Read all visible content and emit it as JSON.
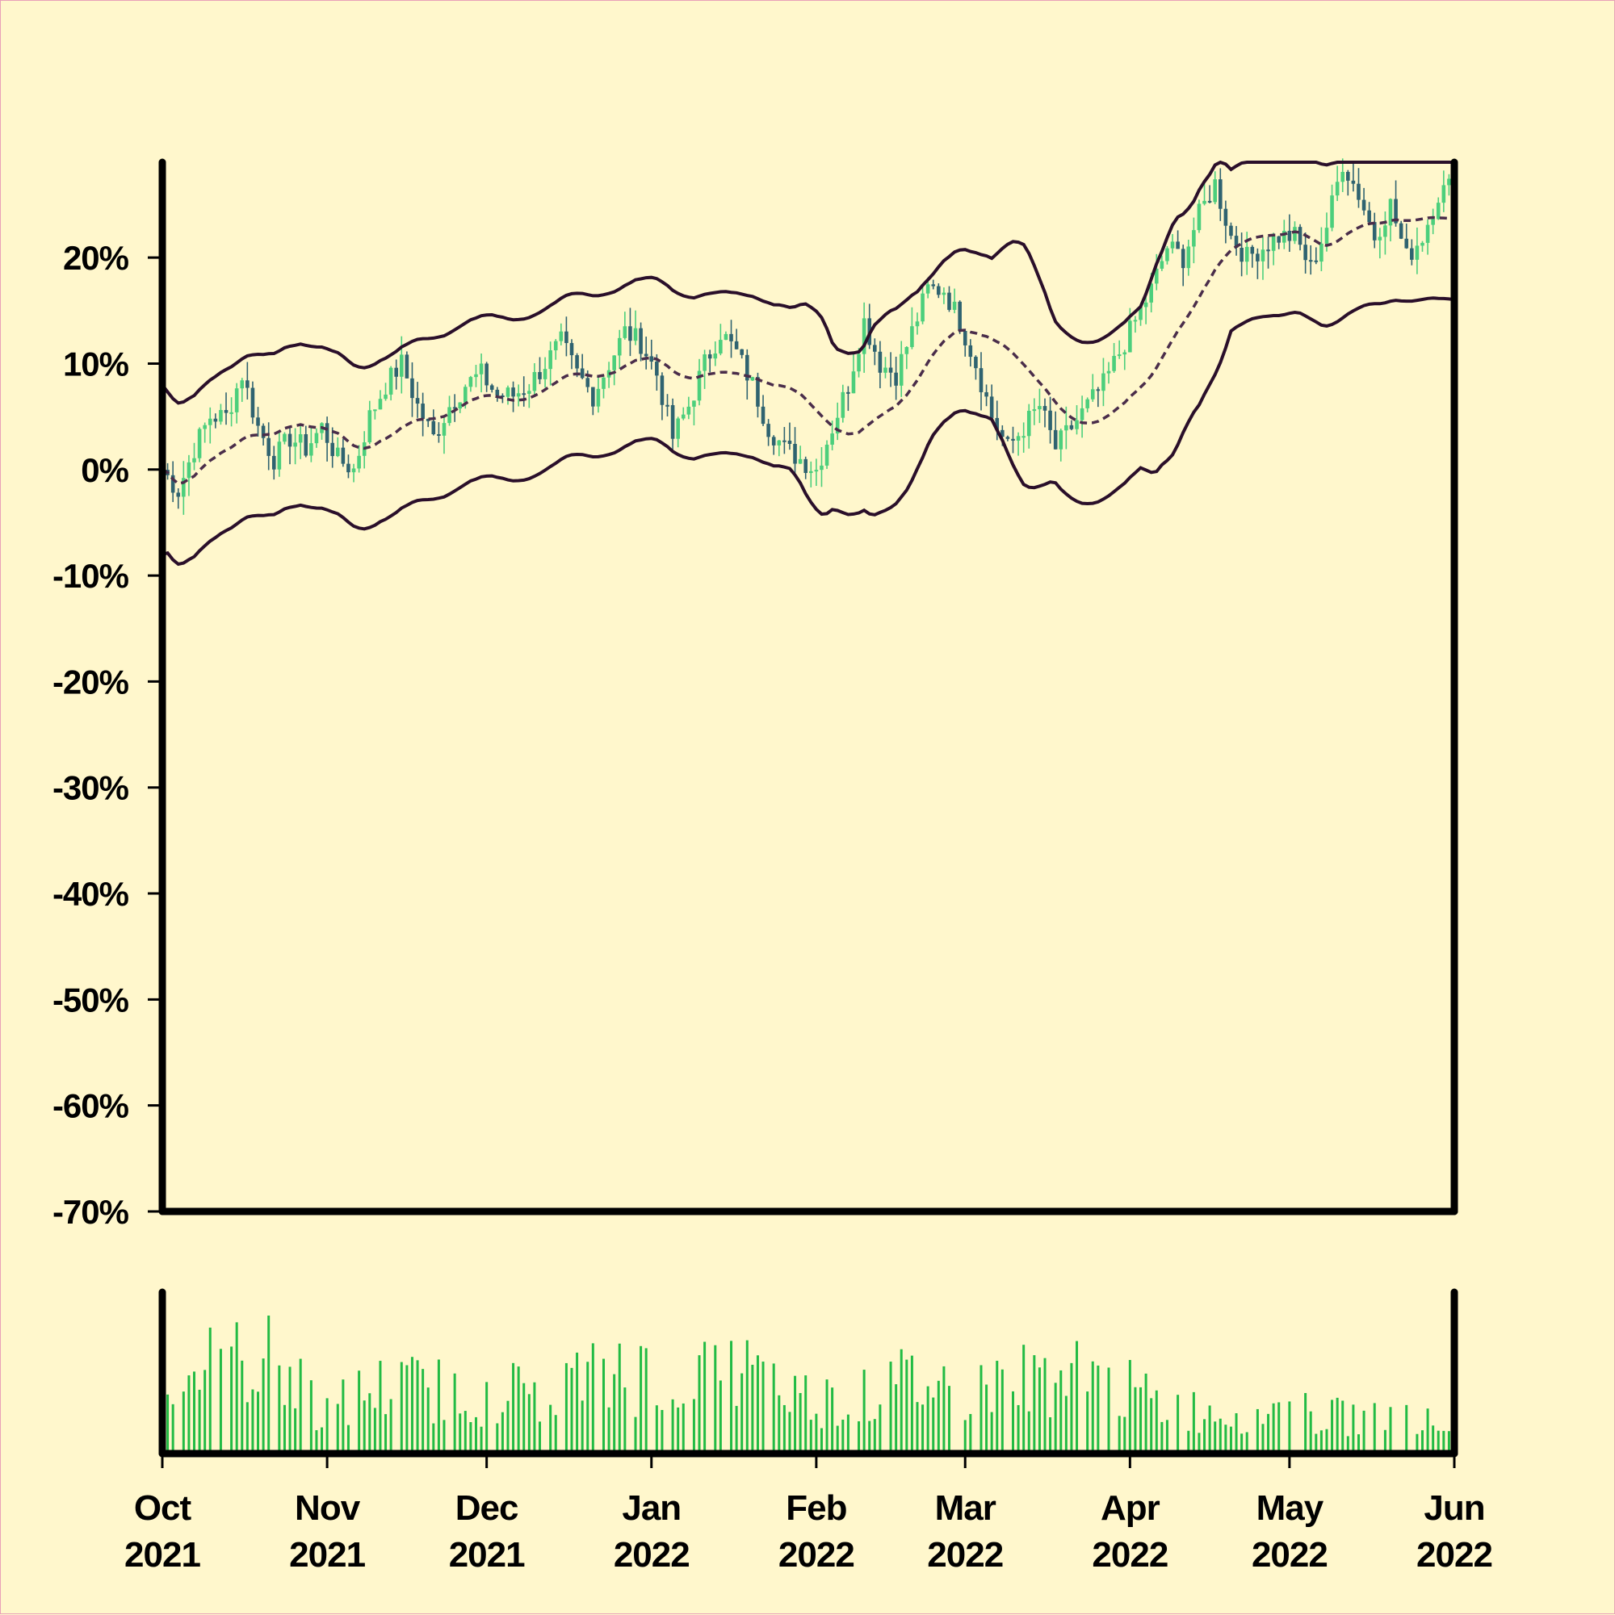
{
  "chart_data": {
    "type": "candlestick",
    "title": "",
    "xlabel": "",
    "ylabel": "",
    "x_range": [
      "2021-10-01",
      "2022-06-01"
    ],
    "ylim": [
      -70,
      29
    ],
    "y_ticks": [
      20,
      10,
      0,
      -10,
      -20,
      -30,
      -40,
      -50,
      -60,
      -70
    ],
    "y_tick_labels": [
      "20%",
      "10%",
      "0%",
      "-10%",
      "-20%",
      "-30%",
      "-40%",
      "-50%",
      "-60%",
      "-70%"
    ],
    "x_ticks": [
      "2021-10-01",
      "2021-11-01",
      "2021-12-01",
      "2022-01-01",
      "2022-02-01",
      "2022-03-01",
      "2022-04-01",
      "2022-05-01",
      "2022-06-01"
    ],
    "x_tick_labels": [
      {
        "month": "Oct",
        "year": "2021"
      },
      {
        "month": "Nov",
        "year": "2021"
      },
      {
        "month": "Dec",
        "year": "2021"
      },
      {
        "month": "Jan",
        "year": "2022"
      },
      {
        "month": "Feb",
        "year": "2022"
      },
      {
        "month": "Mar",
        "year": "2022"
      },
      {
        "month": "Apr",
        "year": "2022"
      },
      {
        "month": "May",
        "year": "2022"
      },
      {
        "month": "Jun",
        "year": "2022"
      }
    ],
    "close_series_pct": {
      "dates": [
        "2021-10-01",
        "2021-10-04",
        "2021-10-07",
        "2021-10-10",
        "2021-10-13",
        "2021-10-16",
        "2021-10-19",
        "2021-10-22",
        "2021-10-25",
        "2021-10-28",
        "2021-10-31",
        "2021-11-03",
        "2021-11-06",
        "2021-11-09",
        "2021-11-12",
        "2021-11-15",
        "2021-11-18",
        "2021-11-21",
        "2021-11-24",
        "2021-11-27",
        "2021-11-30",
        "2021-12-03",
        "2021-12-06",
        "2021-12-09",
        "2021-12-12",
        "2021-12-15",
        "2021-12-18",
        "2021-12-21",
        "2021-12-24",
        "2021-12-27",
        "2021-12-30",
        "2022-01-02",
        "2022-01-05",
        "2022-01-08",
        "2022-01-11",
        "2022-01-14",
        "2022-01-17",
        "2022-01-20",
        "2022-01-23",
        "2022-01-26",
        "2022-01-29",
        "2022-02-01",
        "2022-02-04",
        "2022-02-07",
        "2022-02-10",
        "2022-02-13",
        "2022-02-16",
        "2022-02-19",
        "2022-02-22",
        "2022-02-25",
        "2022-02-28",
        "2022-03-03",
        "2022-03-06",
        "2022-03-09",
        "2022-03-12",
        "2022-03-15",
        "2022-03-18",
        "2022-03-21",
        "2022-03-24",
        "2022-03-27",
        "2022-03-30",
        "2022-04-02",
        "2022-04-05",
        "2022-04-08",
        "2022-04-11",
        "2022-04-14",
        "2022-04-17",
        "2022-04-20",
        "2022-04-23",
        "2022-04-26",
        "2022-04-29",
        "2022-05-02",
        "2022-05-05",
        "2022-05-08",
        "2022-05-11",
        "2022-05-14",
        "2022-05-17",
        "2022-05-20",
        "2022-05-23",
        "2022-05-26",
        "2022-05-29",
        "2022-06-01"
      ],
      "values": [
        0,
        -2,
        2,
        5,
        5,
        9,
        4,
        1,
        3,
        2,
        4,
        1,
        0,
        5,
        8,
        10,
        6,
        3,
        6,
        8,
        9,
        7,
        7,
        8,
        10,
        12,
        9,
        7,
        10,
        13,
        12,
        9,
        3,
        6,
        10,
        13,
        11,
        8,
        4,
        2,
        1,
        0,
        4,
        8,
        14,
        10,
        9,
        13,
        17,
        17,
        14,
        10,
        5,
        2,
        4,
        6,
        2,
        4,
        6,
        8,
        11,
        14,
        17,
        21,
        20,
        24,
        27,
        22,
        20,
        21,
        22,
        22,
        19,
        23,
        29,
        26,
        22,
        25,
        20,
        22,
        26,
        27
      ]
    },
    "bands": {
      "middle_line_style": "dashed",
      "outer_line_style": "solid"
    },
    "volume_series": {
      "dates": [
        "2021-10-01",
        "2021-10-11",
        "2021-10-21",
        "2021-10-31",
        "2021-11-10",
        "2021-11-20",
        "2021-11-30",
        "2021-12-10",
        "2021-12-20",
        "2021-12-30",
        "2022-01-09",
        "2022-01-19",
        "2022-01-29",
        "2022-02-08",
        "2022-02-18",
        "2022-02-28",
        "2022-03-10",
        "2022-03-20",
        "2022-03-30",
        "2022-04-09",
        "2022-04-19",
        "2022-04-29",
        "2022-05-09",
        "2022-05-19",
        "2022-05-29"
      ],
      "values": [
        0.55,
        0.6,
        0.65,
        0.3,
        0.45,
        0.45,
        0.4,
        0.45,
        0.5,
        0.55,
        0.5,
        0.55,
        0.4,
        0.35,
        0.5,
        0.45,
        0.5,
        0.55,
        0.45,
        0.3,
        0.3,
        0.3,
        0.25,
        0.25,
        0.2
      ],
      "range": [
        0,
        1
      ]
    },
    "grid": false,
    "legend": "none",
    "colors": {
      "background": "#fff7cc",
      "up_candle": "#4ccf7c",
      "down_candle": "#2f6370",
      "band_outer": "#2a0f2a",
      "band_middle": "#4a2d4a",
      "volume_bar": "#22bb44",
      "axes": "#000000"
    }
  }
}
